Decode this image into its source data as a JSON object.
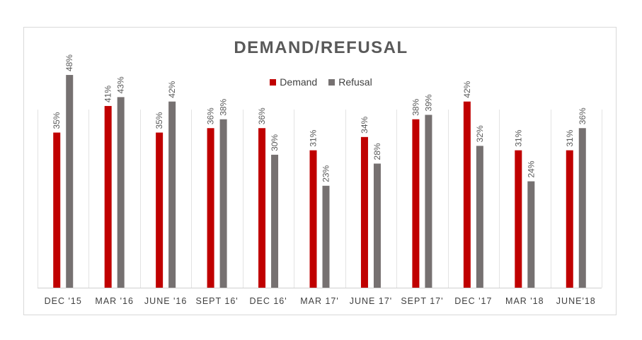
{
  "chart_data": {
    "type": "bar",
    "title": "DEMAND/REFUSAL",
    "categories": [
      "DEC '15",
      "MAR '16",
      "JUNE '16",
      "SEPT 16'",
      "DEC 16'",
      "MAR 17'",
      "JUNE 17'",
      "SEPT 17'",
      "DEC '17",
      "MAR '18",
      "JUNE'18"
    ],
    "series": [
      {
        "name": "Demand",
        "color": "#c00000",
        "values": [
          35,
          41,
          35,
          36,
          36,
          31,
          34,
          38,
          42,
          31,
          31
        ]
      },
      {
        "name": "Refusal",
        "color": "#767171",
        "values": [
          48,
          43,
          42,
          38,
          30,
          23,
          28,
          39,
          32,
          24,
          36
        ]
      }
    ],
    "value_suffix": "%",
    "ylim": [
      0,
      60
    ],
    "grid": "vertical category separators",
    "legend_position": "top"
  }
}
